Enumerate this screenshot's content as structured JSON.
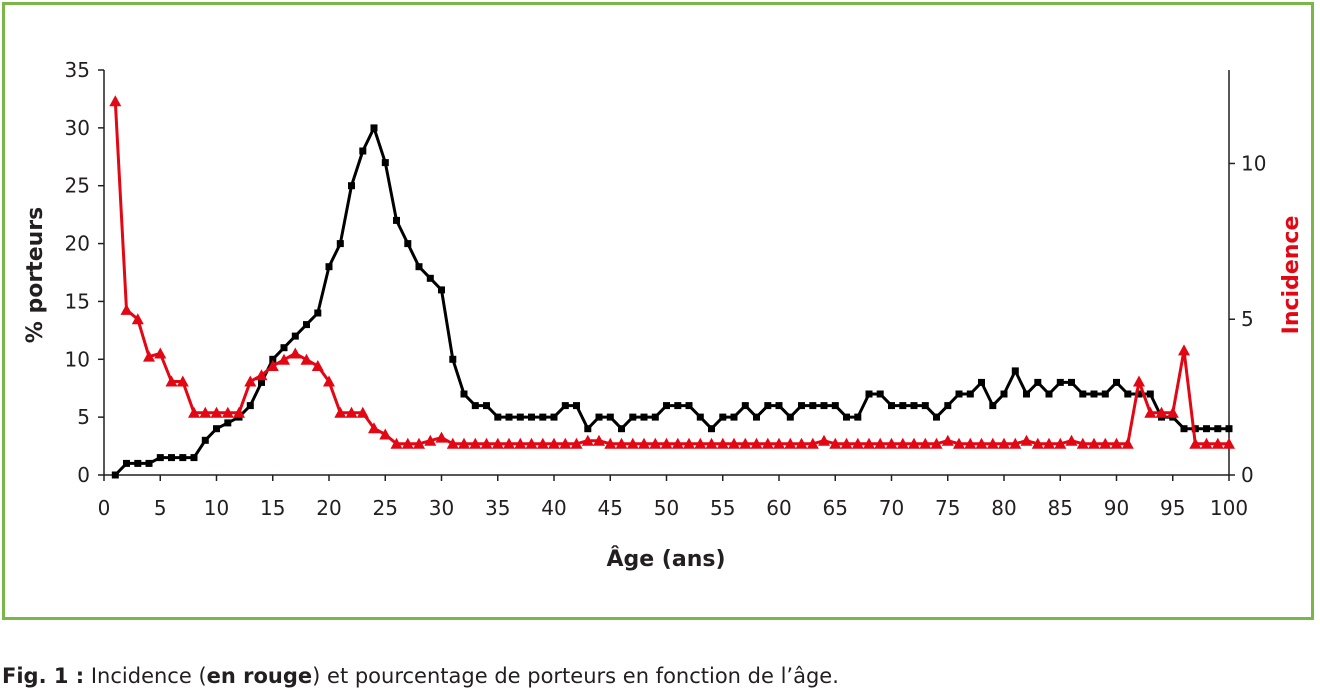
{
  "chart_data": {
    "type": "line",
    "xlabel": "Âge (ans)",
    "ylabel_left": "% porteurs",
    "ylabel_right": "Incidence",
    "xlim": [
      0,
      100
    ],
    "ylim_left": [
      0,
      35
    ],
    "ylim_right": [
      0,
      13
    ],
    "x_ticks": [
      0,
      5,
      10,
      15,
      20,
      25,
      30,
      35,
      40,
      45,
      50,
      55,
      60,
      65,
      70,
      75,
      80,
      85,
      90,
      95,
      100
    ],
    "y_left_ticks": [
      0,
      5,
      10,
      15,
      20,
      25,
      30,
      35
    ],
    "y_right_ticks": [
      0,
      5,
      10
    ],
    "grid": false,
    "legend": "none",
    "colors": {
      "porteurs": "#000000",
      "incidence": "#e30613",
      "frame": "#7ab648"
    },
    "series": [
      {
        "axis": "left",
        "marker": "square",
        "x": [
          1,
          2,
          3,
          4,
          5,
          6,
          7,
          8,
          9,
          10,
          11,
          12,
          13,
          14,
          15,
          16,
          17,
          18,
          19,
          20,
          21,
          22,
          23,
          24,
          25,
          26,
          27,
          28,
          29,
          30,
          31,
          32,
          33,
          34,
          35,
          36,
          37,
          38,
          39,
          40,
          41,
          42,
          43,
          44,
          45,
          46,
          47,
          48,
          49,
          50,
          51,
          52,
          53,
          54,
          55,
          56,
          57,
          58,
          59,
          60,
          61,
          62,
          63,
          64,
          65,
          66,
          67,
          68,
          69,
          70,
          71,
          72,
          73,
          74,
          75,
          76,
          77,
          78,
          79,
          80,
          81,
          82,
          83,
          84,
          85,
          86,
          87,
          88,
          89,
          90,
          91,
          92,
          93,
          94,
          95,
          96,
          97,
          98,
          99,
          100
        ],
        "values": [
          0,
          1,
          1,
          1,
          1.5,
          1.5,
          1.5,
          1.5,
          3,
          4,
          4.5,
          5,
          6,
          8,
          10,
          11,
          12,
          13,
          14,
          18,
          20,
          25,
          28,
          30,
          27,
          22,
          20,
          18,
          17,
          16,
          10,
          7,
          6,
          6,
          5,
          5,
          5,
          5,
          5,
          5,
          6,
          6,
          4,
          5,
          5,
          4,
          5,
          5,
          5,
          6,
          6,
          6,
          5,
          4,
          5,
          5,
          6,
          5,
          6,
          6,
          5,
          6,
          6,
          6,
          6,
          5,
          5,
          7,
          7,
          6,
          6,
          6,
          6,
          5,
          6,
          7,
          7,
          8,
          6,
          7,
          9,
          7,
          8,
          7,
          8,
          8,
          7,
          7,
          7,
          8,
          7,
          7,
          7,
          5,
          5,
          4,
          4,
          4,
          4,
          4
        ]
      },
      {
        "axis": "right",
        "marker": "triangle",
        "x": [
          1,
          2,
          3,
          4,
          5,
          6,
          7,
          8,
          9,
          10,
          11,
          12,
          13,
          14,
          15,
          16,
          17,
          18,
          19,
          20,
          21,
          22,
          23,
          24,
          25,
          26,
          27,
          28,
          29,
          30,
          31,
          32,
          33,
          34,
          35,
          36,
          37,
          38,
          39,
          40,
          41,
          42,
          43,
          44,
          45,
          46,
          47,
          48,
          49,
          50,
          51,
          52,
          53,
          54,
          55,
          56,
          57,
          58,
          59,
          60,
          61,
          62,
          63,
          64,
          65,
          66,
          67,
          68,
          69,
          70,
          71,
          72,
          73,
          74,
          75,
          76,
          77,
          78,
          79,
          80,
          81,
          82,
          83,
          84,
          85,
          86,
          87,
          88,
          89,
          90,
          91,
          92,
          93,
          94,
          95,
          96,
          97,
          98,
          99,
          100
        ],
        "values": [
          12,
          5.3,
          5,
          3.8,
          3.9,
          3,
          3,
          2,
          2,
          2,
          2,
          2,
          3,
          3.2,
          3.5,
          3.7,
          3.9,
          3.7,
          3.5,
          3,
          2,
          2,
          2,
          1.5,
          1.3,
          1,
          1,
          1,
          1.1,
          1.2,
          1,
          1,
          1,
          1,
          1,
          1,
          1,
          1,
          1,
          1,
          1,
          1,
          1.1,
          1.1,
          1,
          1,
          1,
          1,
          1,
          1,
          1,
          1,
          1,
          1,
          1,
          1,
          1,
          1,
          1,
          1,
          1,
          1,
          1,
          1.1,
          1,
          1,
          1,
          1,
          1,
          1,
          1,
          1,
          1,
          1,
          1.1,
          1,
          1,
          1,
          1,
          1,
          1,
          1.1,
          1,
          1,
          1,
          1.1,
          1,
          1,
          1,
          1,
          1,
          3,
          2,
          2,
          2,
          4,
          1,
          1,
          1,
          1
        ]
      }
    ]
  },
  "caption": {
    "fig": "Fig. 1 :",
    "pre": " Incidence (",
    "bold": "en rouge",
    "post": ") et pourcentage de porteurs en fonction de l’âge."
  }
}
